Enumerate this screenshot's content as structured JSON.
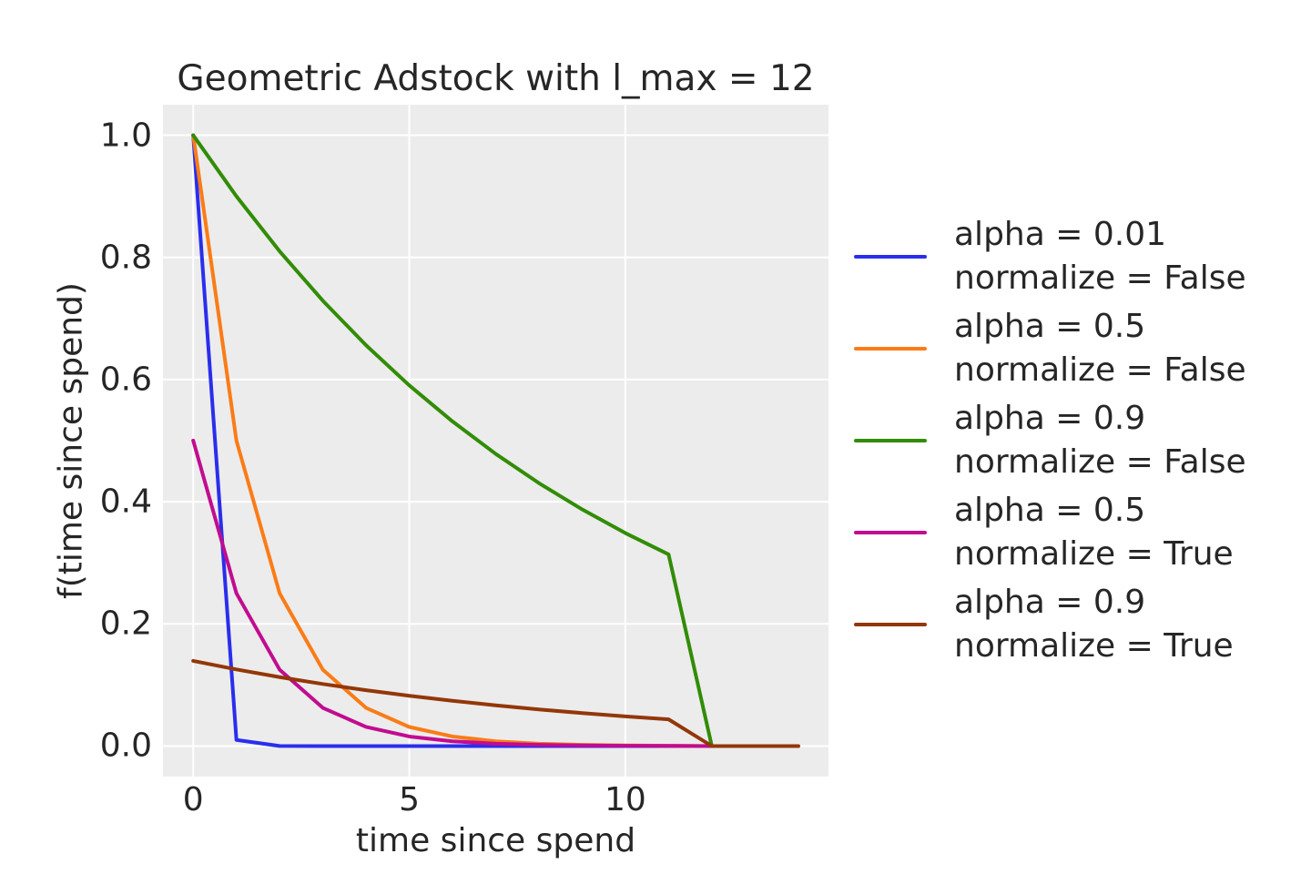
{
  "chart_data": {
    "type": "line",
    "title": "Geometric Adstock with l_max = 12",
    "xlabel": "time since spend",
    "ylabel": "f(time since spend)",
    "xlim": [
      -0.7,
      14.7
    ],
    "ylim": [
      -0.05,
      1.05
    ],
    "xticks": [
      0,
      5,
      10
    ],
    "xtick_labels": [
      "0",
      "5",
      "10"
    ],
    "yticks": [
      0.0,
      0.2,
      0.4,
      0.6,
      0.8,
      1.0
    ],
    "ytick_labels": [
      "0.0",
      "0.2",
      "0.4",
      "0.6",
      "0.8",
      "1.0"
    ],
    "grid": true,
    "legend_position": "right",
    "plot_background": "#ececec",
    "grid_color": "#ffffff",
    "text_color": "#262626",
    "line_width": 4,
    "x": [
      0,
      1,
      2,
      3,
      4,
      5,
      6,
      7,
      8,
      9,
      10,
      11,
      12,
      13,
      14
    ],
    "series": [
      {
        "label_line1": "alpha = 0.01",
        "label_line2": "normalize = False",
        "color": "#2a2eec",
        "values": [
          1.0,
          0.01,
          0.0001,
          0.0,
          0.0,
          0.0,
          0.0,
          0.0,
          0.0,
          0.0,
          0.0,
          0.0,
          0.0,
          0.0,
          0.0
        ]
      },
      {
        "label_line1": "alpha = 0.5",
        "label_line2": "normalize = False",
        "color": "#fa7c17",
        "values": [
          1.0,
          0.5,
          0.25,
          0.125,
          0.0625,
          0.03125,
          0.01563,
          0.00781,
          0.00391,
          0.00195,
          0.00098,
          0.00049,
          0.0,
          0.0,
          0.0
        ]
      },
      {
        "label_line1": "alpha = 0.9",
        "label_line2": "normalize = False",
        "color": "#328c06",
        "values": [
          1.0,
          0.9,
          0.81,
          0.729,
          0.6561,
          0.59049,
          0.53144,
          0.4783,
          0.43047,
          0.38742,
          0.34868,
          0.31381,
          0.0,
          0.0,
          0.0
        ]
      },
      {
        "label_line1": "alpha = 0.5",
        "label_line2": "normalize = True",
        "color": "#c10c90",
        "values": [
          0.50012,
          0.25006,
          0.12503,
          0.06251,
          0.03126,
          0.01563,
          0.00781,
          0.00391,
          0.00195,
          0.00098,
          0.00049,
          0.00024,
          0.0,
          0.0,
          0.0
        ]
      },
      {
        "label_line1": "alpha = 0.9",
        "label_line2": "normalize = True",
        "color": "#933708",
        "values": [
          0.13936,
          0.12542,
          0.11288,
          0.10159,
          0.09143,
          0.08229,
          0.07406,
          0.06666,
          0.05999,
          0.05399,
          0.04859,
          0.04373,
          0.0,
          0.0,
          0.0
        ]
      }
    ]
  }
}
